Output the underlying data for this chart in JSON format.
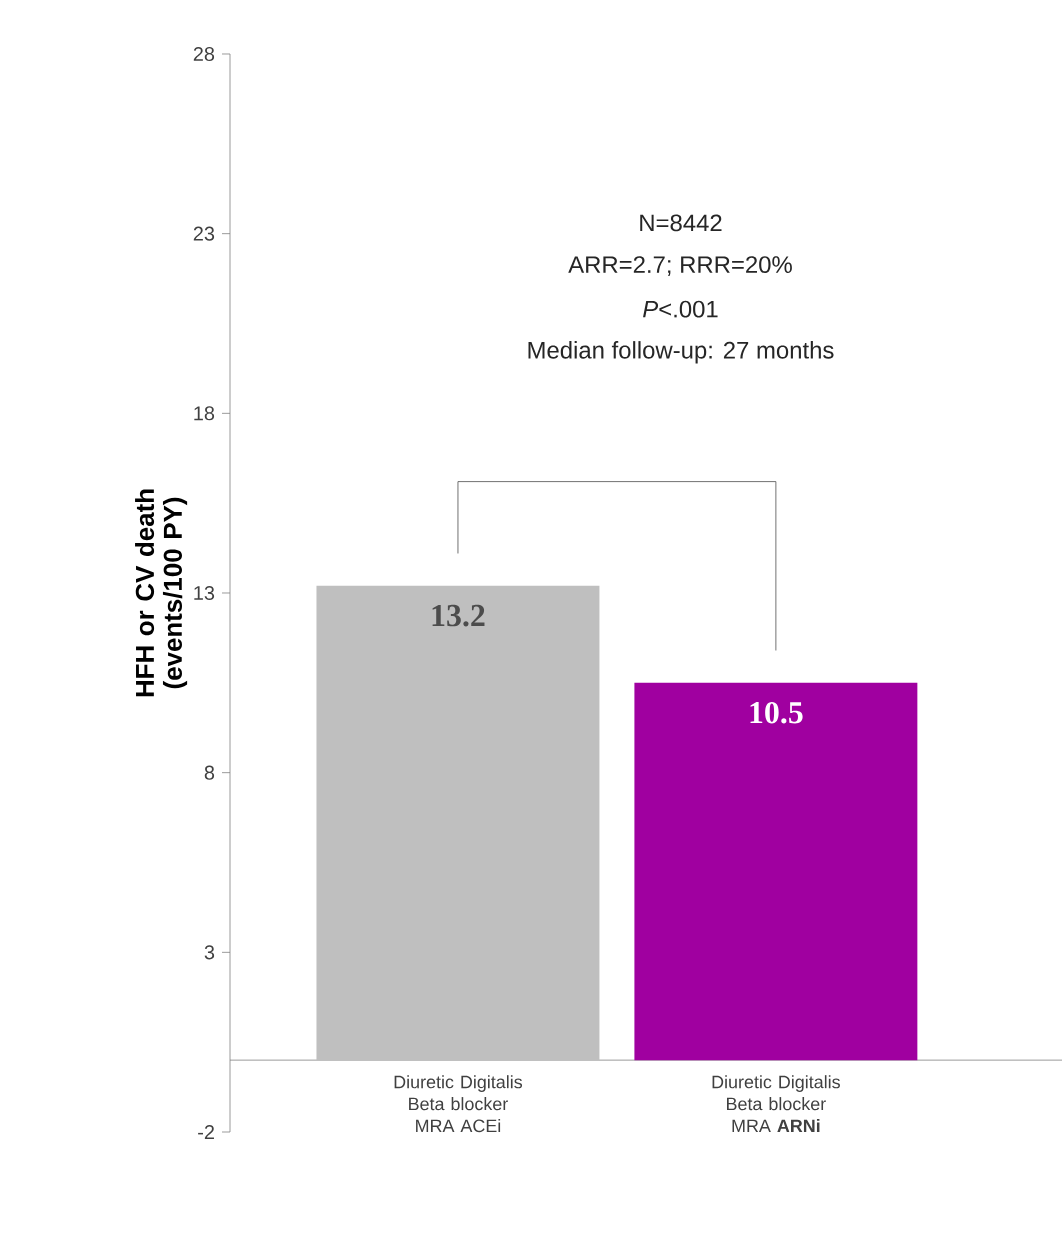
{
  "chart_data": {
    "type": "bar",
    "ylabel": "HFH or CV death (events/100 PY)",
    "categories": [
      "Diuretic Digitalis Beta blocker MRA ACEi",
      "Diuretic Digitalis Beta blocker MRA **ARNi**"
    ],
    "values": [
      13.2,
      10.5
    ],
    "colors": [
      "#bfbfbf",
      "#a000a0"
    ],
    "value_labels": [
      "13.2",
      "10.5"
    ],
    "ylim": [
      -2,
      28
    ],
    "yticks": [
      -2,
      3,
      8,
      13,
      18,
      23,
      28
    ],
    "grid": false,
    "annotations": [
      "N=8442",
      "ARR=2.7; RRR=20%",
      "*P*<.001",
      "Median follow-up: 27 months"
    ]
  }
}
